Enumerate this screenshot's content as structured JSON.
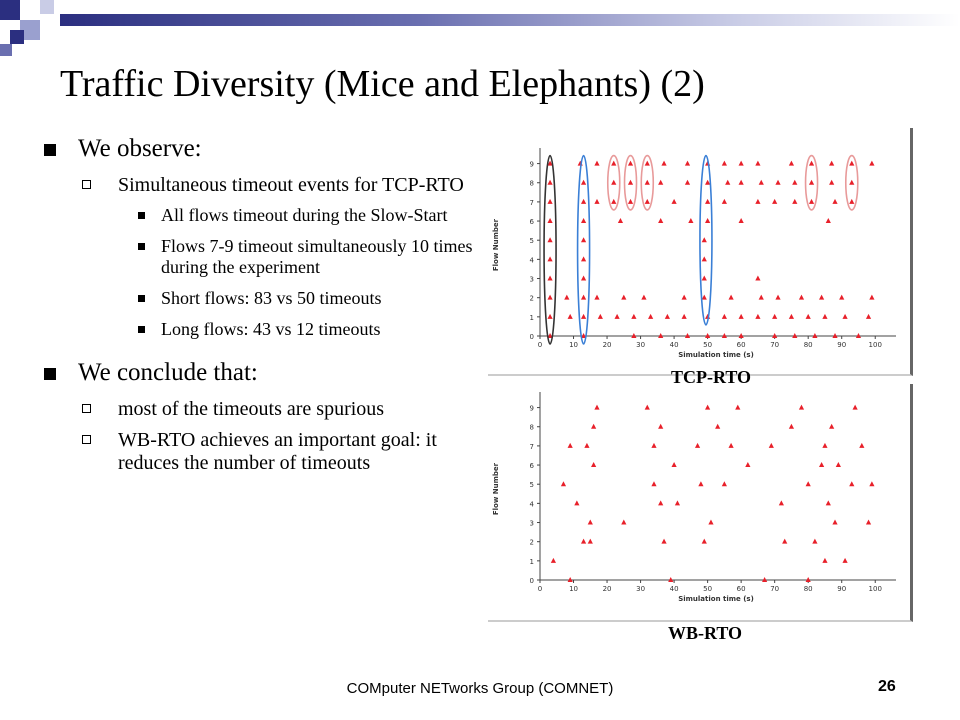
{
  "slide": {
    "title": "Traffic Diversity (Mice and Elephants) (2)",
    "footer": "COMputer NETworks Group (COMNET)",
    "page_number": "26"
  },
  "bullets": [
    {
      "level": 1,
      "text": "We observe:"
    },
    {
      "level": 2,
      "text": "Simultaneous timeout events for TCP-RTO"
    },
    {
      "level": 3,
      "text": "All flows timeout during the Slow-Start"
    },
    {
      "level": 3,
      "text": "Flows 7-9 timeout simultaneously 10 times during the experiment"
    },
    {
      "level": 3,
      "text": "Short flows: 83 vs 50 timeouts"
    },
    {
      "level": 3,
      "text": "Long flows: 43 vs 12 timeouts"
    },
    {
      "level": 1,
      "text": "We conclude that:"
    },
    {
      "level": 2,
      "text": "most of the timeouts are spurious"
    },
    {
      "level": 2,
      "text": "WB-RTO achieves an important goal: it reduces the number of timeouts"
    }
  ],
  "colors": {
    "marker": "#e8202a",
    "black_ellipse": "#333333",
    "blue_ellipse": "#3a7fd6",
    "pink_ellipse": "#e89a9a"
  },
  "chart_data": [
    {
      "type": "scatter",
      "caption": "TCP-RTO",
      "xlabel": "Simulation time (s)",
      "ylabel": "Flow Number",
      "xlim": [
        0,
        105
      ],
      "ylim": [
        0,
        9.5
      ],
      "xticks": [
        "0",
        "10",
        "20",
        "30",
        "40",
        "50",
        "60",
        "70",
        "80",
        "90",
        "100"
      ],
      "yticks": [
        "0",
        "1",
        "2",
        "3",
        "4",
        "5",
        "6",
        "7",
        "8",
        "9"
      ],
      "points": [
        [
          3,
          9
        ],
        [
          12,
          9
        ],
        [
          17,
          9
        ],
        [
          22,
          9
        ],
        [
          27,
          9
        ],
        [
          32,
          9
        ],
        [
          37,
          9
        ],
        [
          44,
          9
        ],
        [
          50,
          9
        ],
        [
          55,
          9
        ],
        [
          60,
          9
        ],
        [
          65,
          9
        ],
        [
          75,
          9
        ],
        [
          81,
          9
        ],
        [
          87,
          9
        ],
        [
          93,
          9
        ],
        [
          99,
          9
        ],
        [
          3,
          8
        ],
        [
          13,
          8
        ],
        [
          22,
          8
        ],
        [
          27,
          8
        ],
        [
          32,
          8
        ],
        [
          36,
          8
        ],
        [
          44,
          8
        ],
        [
          50,
          8
        ],
        [
          56,
          8
        ],
        [
          60,
          8
        ],
        [
          66,
          8
        ],
        [
          71,
          8
        ],
        [
          76,
          8
        ],
        [
          81,
          8
        ],
        [
          87,
          8
        ],
        [
          93,
          8
        ],
        [
          3,
          7
        ],
        [
          13,
          7
        ],
        [
          17,
          7
        ],
        [
          22,
          7
        ],
        [
          27,
          7
        ],
        [
          32,
          7
        ],
        [
          40,
          7
        ],
        [
          50,
          7
        ],
        [
          55,
          7
        ],
        [
          65,
          7
        ],
        [
          70,
          7
        ],
        [
          76,
          7
        ],
        [
          81,
          7
        ],
        [
          88,
          7
        ],
        [
          93,
          7
        ],
        [
          3,
          6
        ],
        [
          13,
          6
        ],
        [
          24,
          6
        ],
        [
          36,
          6
        ],
        [
          45,
          6
        ],
        [
          50,
          6
        ],
        [
          60,
          6
        ],
        [
          86,
          6
        ],
        [
          3,
          5
        ],
        [
          13,
          5
        ],
        [
          49,
          5
        ],
        [
          3,
          4
        ],
        [
          13,
          4
        ],
        [
          49,
          4
        ],
        [
          3,
          3
        ],
        [
          13,
          3
        ],
        [
          49,
          3
        ],
        [
          65,
          3
        ],
        [
          3,
          2
        ],
        [
          13,
          2
        ],
        [
          17,
          2
        ],
        [
          49,
          2
        ],
        [
          66,
          2
        ],
        [
          3,
          1
        ],
        [
          9,
          1
        ],
        [
          13,
          1
        ],
        [
          18,
          1
        ],
        [
          23,
          1
        ],
        [
          28,
          1
        ],
        [
          33,
          1
        ],
        [
          38,
          1
        ],
        [
          43,
          1
        ],
        [
          50,
          1
        ],
        [
          55,
          1
        ],
        [
          60,
          1
        ],
        [
          65,
          1
        ],
        [
          70,
          1
        ],
        [
          75,
          1
        ],
        [
          80,
          1
        ],
        [
          85,
          1
        ],
        [
          91,
          1
        ],
        [
          98,
          1
        ],
        [
          3,
          0
        ],
        [
          13,
          0
        ],
        [
          28,
          0
        ],
        [
          36,
          0
        ],
        [
          44,
          0
        ],
        [
          50,
          0
        ],
        [
          55,
          0
        ],
        [
          60,
          0
        ],
        [
          70,
          0
        ],
        [
          76,
          0
        ],
        [
          82,
          0
        ],
        [
          88,
          0
        ],
        [
          95,
          0
        ],
        [
          8,
          2
        ],
        [
          25,
          2
        ],
        [
          31,
          2
        ],
        [
          43,
          2
        ],
        [
          57,
          2
        ],
        [
          71,
          2
        ],
        [
          78,
          2
        ],
        [
          84,
          2
        ],
        [
          90,
          2
        ],
        [
          99,
          2
        ]
      ]
    },
    {
      "type": "scatter",
      "caption": "WB-RTO",
      "xlabel": "Simulation time (s)",
      "ylabel": "Flow Number",
      "xlim": [
        0,
        105
      ],
      "ylim": [
        0,
        9.5
      ],
      "xticks": [
        "0",
        "10",
        "20",
        "30",
        "40",
        "50",
        "60",
        "70",
        "80",
        "90",
        "100"
      ],
      "yticks": [
        "0",
        "1",
        "2",
        "3",
        "4",
        "5",
        "6",
        "7",
        "8",
        "9"
      ],
      "points": [
        [
          4,
          1
        ],
        [
          7,
          5
        ],
        [
          9,
          7
        ],
        [
          11,
          4
        ],
        [
          13,
          2
        ],
        [
          14,
          7
        ],
        [
          15,
          2
        ],
        [
          15,
          3
        ],
        [
          16,
          6
        ],
        [
          16,
          8
        ],
        [
          9,
          0
        ],
        [
          17,
          9
        ],
        [
          25,
          3
        ],
        [
          32,
          9
        ],
        [
          34,
          7
        ],
        [
          34,
          5
        ],
        [
          36,
          4
        ],
        [
          36,
          8
        ],
        [
          37,
          2
        ],
        [
          39,
          0
        ],
        [
          40,
          6
        ],
        [
          41,
          4
        ],
        [
          47,
          7
        ],
        [
          48,
          5
        ],
        [
          49,
          2
        ],
        [
          50,
          9
        ],
        [
          51,
          3
        ],
        [
          53,
          8
        ],
        [
          55,
          5
        ],
        [
          57,
          7
        ],
        [
          59,
          9
        ],
        [
          62,
          6
        ],
        [
          67,
          0
        ],
        [
          69,
          7
        ],
        [
          72,
          4
        ],
        [
          73,
          2
        ],
        [
          75,
          8
        ],
        [
          78,
          9
        ],
        [
          80,
          5
        ],
        [
          82,
          2
        ],
        [
          84,
          6
        ],
        [
          85,
          7
        ],
        [
          86,
          4
        ],
        [
          87,
          8
        ],
        [
          88,
          3
        ],
        [
          89,
          6
        ],
        [
          91,
          1
        ],
        [
          93,
          5
        ],
        [
          94,
          9
        ],
        [
          96,
          7
        ],
        [
          98,
          3
        ],
        [
          99,
          5
        ],
        [
          85,
          1
        ],
        [
          80,
          0
        ]
      ]
    }
  ]
}
